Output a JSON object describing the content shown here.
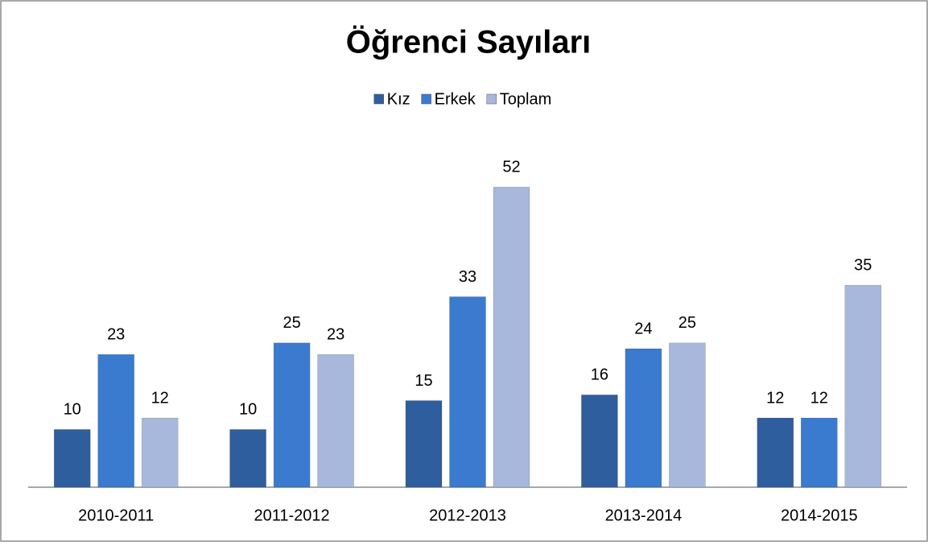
{
  "chart_data": {
    "type": "bar",
    "title": "Öğrenci Sayıları",
    "categories": [
      "2010-2011",
      "2011-2012",
      "2012-2013",
      "2013-2014",
      "2014-2015"
    ],
    "series": [
      {
        "name": "Kız",
        "color": "#2f5e9e",
        "values": [
          10,
          10,
          15,
          16,
          12
        ]
      },
      {
        "name": "Erkek",
        "color": "#3a7bd0",
        "values": [
          23,
          25,
          33,
          24,
          12
        ]
      },
      {
        "name": "Toplam",
        "color": "#a7b8dc",
        "values": [
          12,
          23,
          52,
          25,
          35
        ]
      }
    ],
    "ylim": [
      0,
      60
    ],
    "legend": "top"
  }
}
